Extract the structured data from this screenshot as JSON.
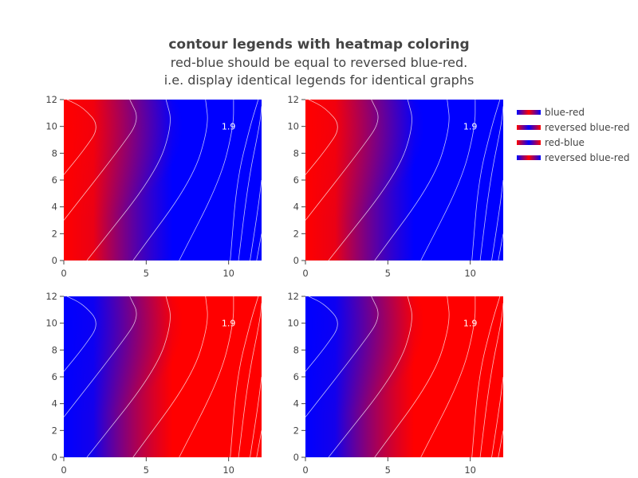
{
  "title": {
    "main": "contour legends with heatmap coloring",
    "line2": "red-blue should be equal to reversed blue-red.",
    "line3": "i.e. display identical legends for identical graphs"
  },
  "colors": {
    "red": "#ff0000",
    "blue": "#0000ff",
    "contour": "#ffffff"
  },
  "legend": [
    {
      "label": "blue-red",
      "swatch": [
        "#0000ff",
        "#ff0000",
        "#0000ff"
      ]
    },
    {
      "label": "reversed blue-red",
      "swatch": [
        "#ff0000",
        "#0000ff",
        "#ff0000"
      ]
    },
    {
      "label": "red-blue",
      "swatch": [
        "#ff0000",
        "#0000ff",
        "#ff0000"
      ]
    },
    {
      "label": "reversed blue-red",
      "swatch": [
        "#0000ff",
        "#ff0000",
        "#0000ff"
      ]
    }
  ],
  "chart_data": {
    "type": "heatmap",
    "subplots": [
      {
        "name": "blue-red",
        "high_color": "red",
        "low_color": "blue"
      },
      {
        "name": "reversed blue-red",
        "high_color": "red",
        "low_color": "blue"
      },
      {
        "name": "red-blue",
        "high_color": "blue",
        "low_color": "red"
      },
      {
        "name": "reversed blue-red",
        "high_color": "blue",
        "low_color": "red"
      }
    ],
    "xlim": [
      0,
      12
    ],
    "ylim": [
      0,
      12
    ],
    "x_ticks": [
      0,
      5,
      10
    ],
    "y_ticks": [
      0,
      2,
      4,
      6,
      8,
      10,
      12
    ],
    "contour_label": "1.9",
    "legend_position": "right"
  }
}
